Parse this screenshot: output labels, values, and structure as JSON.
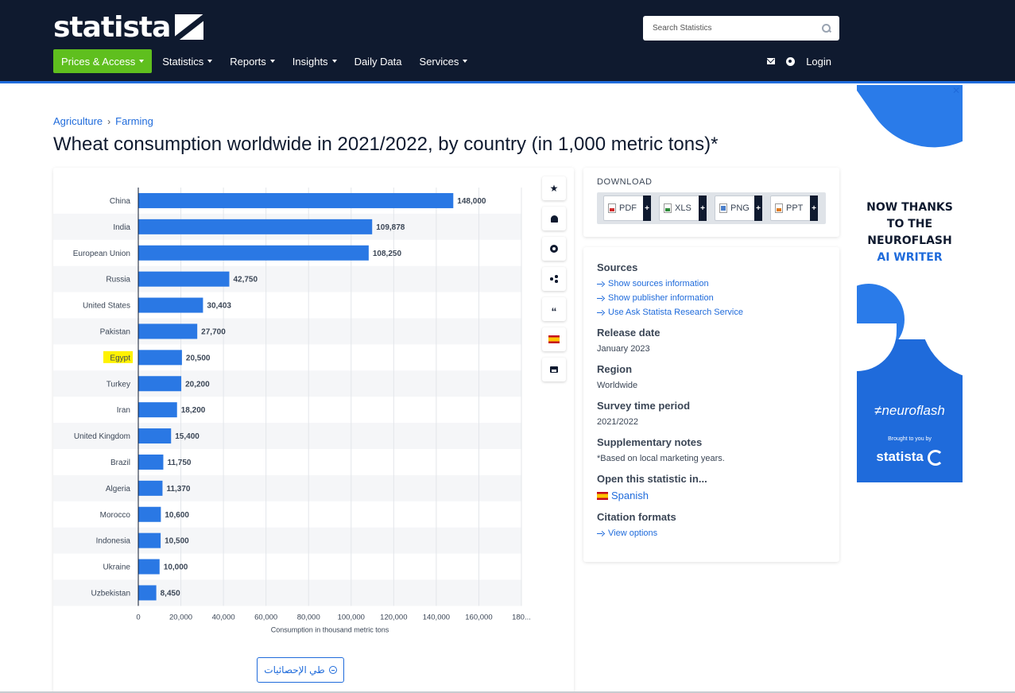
{
  "header": {
    "logo_text": "statista",
    "search_placeholder": "Search Statistics",
    "nav": [
      {
        "label": "Prices & Access",
        "dropdown": true
      },
      {
        "label": "Statistics",
        "dropdown": true
      },
      {
        "label": "Reports",
        "dropdown": true
      },
      {
        "label": "Insights",
        "dropdown": true
      },
      {
        "label": "Daily Data",
        "dropdown": false
      },
      {
        "label": "Services",
        "dropdown": true
      }
    ],
    "login_label": "Login"
  },
  "breadcrumb": [
    "Agriculture",
    "Farming"
  ],
  "page_title": "Wheat consumption worldwide in 2021/2022, by country (in 1,000 metric tons)*",
  "colors": {
    "brand_dark": "#0f1a2f",
    "accent_blue": "#1f6bdb",
    "bar": "#2a78e4",
    "prices_green": "#5fbf1e",
    "highlight": "#fff200"
  },
  "chart_data": {
    "type": "bar",
    "orientation": "horizontal",
    "categories": [
      "China",
      "India",
      "European Union",
      "Russia",
      "United States",
      "Pakistan",
      "Egypt",
      "Turkey",
      "Iran",
      "United Kingdom",
      "Brazil",
      "Algeria",
      "Morocco",
      "Indonesia",
      "Ukraine",
      "Uzbekistan"
    ],
    "values": [
      148000,
      109878,
      108250,
      42750,
      30403,
      27700,
      20500,
      20200,
      18200,
      15400,
      11750,
      11370,
      10600,
      10500,
      10000,
      8450
    ],
    "value_labels": [
      "148,000",
      "109,878",
      "108,250",
      "42,750",
      "30,403",
      "27,700",
      "20,500",
      "20,200",
      "18,200",
      "15,400",
      "11,750",
      "11,370",
      "10,600",
      "10,500",
      "10,000",
      "8,450"
    ],
    "highlighted_category": "Egypt",
    "xlabel": "Consumption in thousand metric tons",
    "x_ticks": [
      "0",
      "20,000",
      "40,000",
      "60,000",
      "80,000",
      "100,000",
      "120,000",
      "140,000",
      "160,000",
      "180..."
    ],
    "xlim": [
      0,
      180000
    ],
    "grid": true
  },
  "arabic_button_label": "طي الإحصائيات",
  "tools": [
    "star-icon",
    "bell-icon",
    "gear-icon",
    "share-icon",
    "quote-icon",
    "flag-spain-icon",
    "print-icon"
  ],
  "download": {
    "title": "DOWNLOAD",
    "formats": [
      "PDF",
      "XLS",
      "PNG",
      "PPT"
    ]
  },
  "info": {
    "sources_title": "Sources",
    "source_links": [
      "Show sources information",
      "Show publisher information",
      "Use Ask Statista Research Service"
    ],
    "release_title": "Release date",
    "release_value": "January 2023",
    "region_title": "Region",
    "region_value": "Worldwide",
    "survey_title": "Survey time period",
    "survey_value": "2021/2022",
    "notes_title": "Supplementary notes",
    "notes_value": "*Based on local marketing years.",
    "open_title": "Open this statistic in...",
    "open_value": "Spanish",
    "citation_title": "Citation formats",
    "citation_link": "View options"
  },
  "ad": {
    "close": "✕",
    "line1": "NOW THANKS",
    "line2": "TO THE",
    "line3": "NEUROFLASH",
    "line4": "AI WRITER",
    "brand": "≠neuroflash",
    "brought": "Brought to you by",
    "statista": "statista"
  }
}
